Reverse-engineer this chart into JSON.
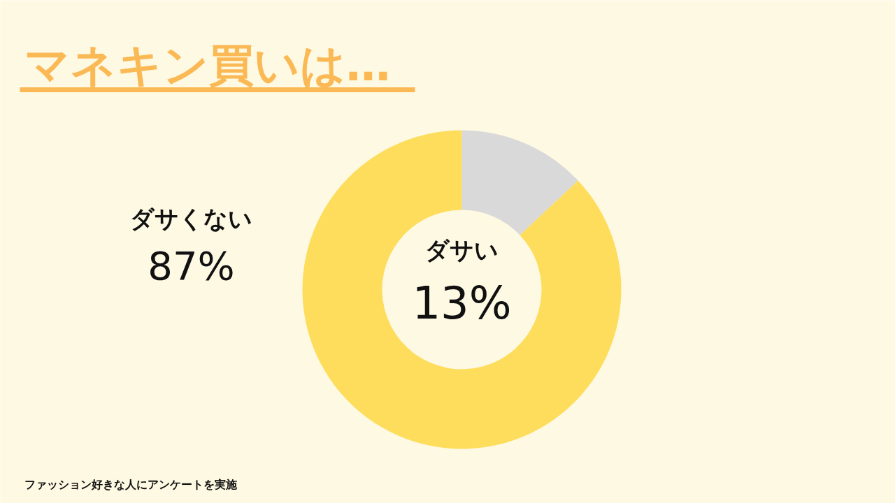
{
  "chart_data": {
    "type": "donut",
    "title": "マネキン買いは…",
    "categories": [
      "ダサい",
      "ダサくない"
    ],
    "values": [
      13,
      87
    ],
    "colors": [
      "#d9d9d9",
      "#fedd5c"
    ],
    "value_labels": [
      "13%",
      "87%"
    ],
    "legend": false,
    "annotations": [
      "ファッション好きな人にアンケートを実施"
    ]
  }
}
